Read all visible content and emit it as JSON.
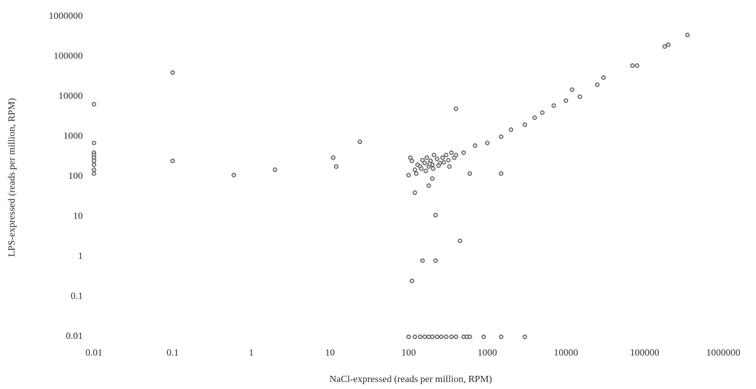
{
  "chart_data": {
    "type": "scatter",
    "x_label": "NaCl-expressed (reads per million, RPM)",
    "y_label": "LPS-expressed (reads per million, RPM)",
    "log_scale": true,
    "color": "#555555",
    "xlim": [
      0.01,
      1000000
    ],
    "ylim": [
      0.01,
      1000000
    ],
    "xticks": [
      0.01,
      0.1,
      1,
      10,
      100,
      1000,
      10000,
      100000,
      1000000
    ],
    "yticks": [
      0.01,
      0.1,
      1,
      10,
      100,
      1000,
      10000,
      100000,
      1000000
    ],
    "x": [
      0.01,
      0.01,
      0.01,
      0.01,
      0.01,
      0.01,
      0.01,
      0.01,
      0.01,
      0.1,
      0.1,
      0.6,
      2,
      11,
      12,
      24,
      100,
      110,
      120,
      130,
      140,
      150,
      160,
      170,
      180,
      190,
      200,
      210,
      230,
      250,
      270,
      300,
      320,
      350,
      380,
      400,
      105,
      125,
      145,
      165,
      185,
      205,
      240,
      280,
      330,
      400,
      500,
      700,
      1000,
      1500,
      2000,
      3000,
      4000,
      5000,
      7000,
      10000,
      12000,
      15000,
      25000,
      30000,
      70000,
      80000,
      180000,
      200000,
      350000,
      120,
      180,
      200,
      220,
      450,
      150,
      220,
      110,
      600,
      1500,
      100,
      120,
      140,
      160,
      180,
      200,
      230,
      260,
      300,
      350,
      400,
      500,
      550,
      600,
      900,
      1500,
      3000
    ],
    "values": [
      6500,
      700,
      400,
      350,
      300,
      250,
      200,
      150,
      120,
      40000,
      250,
      110,
      150,
      300,
      180,
      750,
      110,
      250,
      150,
      200,
      180,
      260,
      220,
      300,
      180,
      250,
      200,
      350,
      280,
      220,
      300,
      350,
      260,
      400,
      300,
      350,
      300,
      120,
      160,
      140,
      210,
      160,
      190,
      230,
      180,
      5000,
      400,
      600,
      700,
      1000,
      1500,
      2000,
      3000,
      4000,
      6000,
      8000,
      15000,
      10000,
      20000,
      30000,
      60000,
      60000,
      180000,
      200000,
      350000,
      40,
      60,
      90,
      11,
      2.5,
      0.8,
      0.8,
      0.25,
      120,
      120,
      0.01,
      0.01,
      0.01,
      0.01,
      0.01,
      0.01,
      0.01,
      0.01,
      0.01,
      0.01,
      0.01,
      0.01,
      0.01,
      0.01,
      0.01,
      0.01,
      0.01
    ]
  }
}
